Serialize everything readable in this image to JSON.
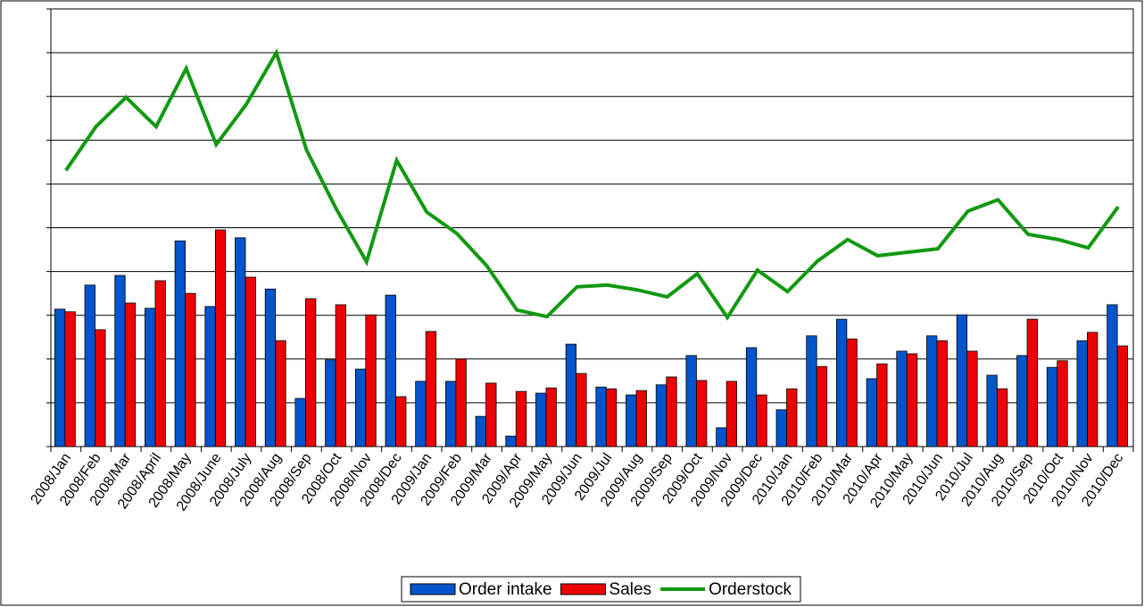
{
  "chart_data": {
    "type": "bar_line",
    "categories": [
      "2008/Jan",
      "2008/Feb",
      "2008/Mar",
      "2008/April",
      "2008/May",
      "2008/June",
      "2008/July",
      "2008/Aug",
      "2008/Sep",
      "2008/Oct",
      "2008/Nov",
      "2008/Dec",
      "2009/Jan",
      "2009/Feb",
      "2009/Mar",
      "2009/Apr",
      "2009/May",
      "2009/Jun",
      "2009/Jul",
      "2009/Aug",
      "2009/Sep",
      "2009/Oct",
      "2009/Nov",
      "2009/Dec",
      "2010/Jan",
      "2010/Feb",
      "2010/Mar",
      "2010/Apr",
      "2010/May",
      "2010/Jun",
      "2010/Jul",
      "2010/Aug",
      "2010/Sep",
      "2010/Oct",
      "2010/Nov",
      "2010/Dec"
    ],
    "series": [
      {
        "name": "Order intake",
        "color": "#0055cc",
        "kind": "bar",
        "values": [
          3.14,
          3.69,
          3.91,
          3.16,
          4.7,
          3.2,
          4.77,
          3.6,
          1.1,
          1.98,
          1.77,
          3.46,
          1.49,
          1.49,
          0.69,
          0.24,
          1.22,
          2.34,
          1.36,
          1.18,
          1.41,
          2.08,
          0.43,
          2.26,
          0.84,
          2.53,
          2.91,
          1.55,
          2.18,
          2.53,
          3.01,
          1.63,
          2.08,
          1.81,
          2.42,
          3.24
        ]
      },
      {
        "name": "Sales",
        "color": "#ee0000",
        "kind": "bar",
        "values": [
          3.08,
          2.67,
          3.28,
          3.79,
          3.5,
          4.95,
          3.87,
          2.42,
          3.38,
          3.24,
          3.01,
          1.14,
          2.63,
          2.0,
          1.45,
          1.26,
          1.34,
          1.67,
          1.32,
          1.28,
          1.59,
          1.51,
          1.49,
          1.18,
          1.32,
          1.83,
          2.46,
          1.89,
          2.12,
          2.42,
          2.18,
          1.32,
          2.91,
          1.96,
          2.61,
          2.3
        ]
      },
      {
        "name": "Orderstock",
        "color": "#119911",
        "kind": "line",
        "values": [
          6.31,
          7.31,
          7.98,
          7.31,
          8.64,
          6.9,
          7.82,
          9.0,
          6.78,
          5.42,
          4.22,
          6.54,
          5.36,
          4.87,
          4.13,
          3.12,
          2.97,
          3.65,
          3.69,
          3.58,
          3.42,
          3.95,
          2.95,
          4.03,
          3.54,
          4.24,
          4.73,
          4.36,
          4.44,
          4.52,
          5.38,
          5.64,
          4.85,
          4.73,
          4.54,
          5.48
        ]
      }
    ],
    "ylim": [
      0,
      10
    ],
    "yticks": [
      0,
      1,
      2,
      3,
      4,
      5,
      6,
      7,
      8,
      9,
      10
    ],
    "grid": true,
    "legend": "bottom"
  }
}
